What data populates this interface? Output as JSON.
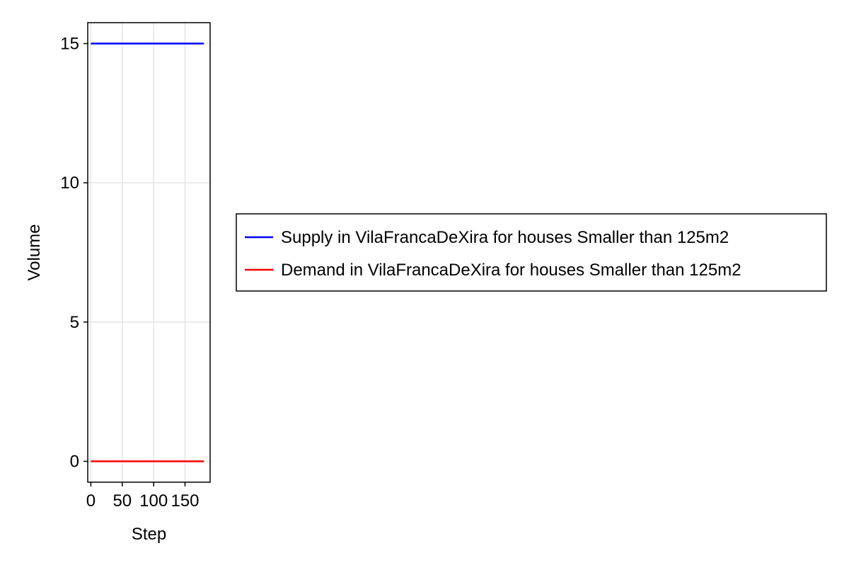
{
  "chart_data": {
    "type": "line",
    "xlabel": "Step",
    "ylabel": "Volume",
    "xlim": [
      -5,
      190
    ],
    "ylim": [
      -0.75,
      15.75
    ],
    "x_ticks": [
      0,
      50,
      100,
      150
    ],
    "y_ticks": [
      0,
      5,
      10,
      15
    ],
    "grid": true,
    "legend_position": "right",
    "series": [
      {
        "name": "Supply in VilaFrancaDeXira for houses Smaller than 125m2",
        "color": "#0000ff",
        "x": [
          0,
          180
        ],
        "y": [
          15,
          15
        ]
      },
      {
        "name": "Demand in VilaFrancaDeXira for houses Smaller than 125m2",
        "color": "#ff0000",
        "x": [
          0,
          180
        ],
        "y": [
          0,
          0
        ]
      }
    ]
  }
}
